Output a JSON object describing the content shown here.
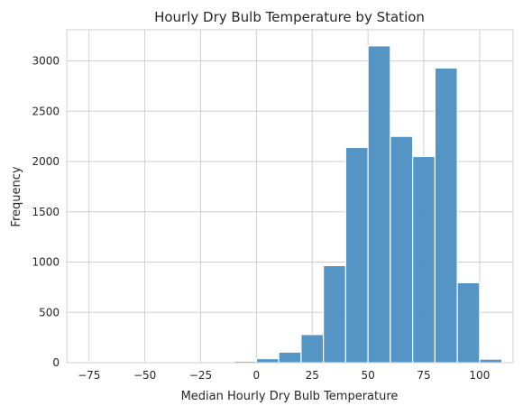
{
  "chart_data": {
    "type": "histogram",
    "title": "Hourly Dry Bulb Temperature by Station",
    "xlabel": "Median Hourly Dry Bulb Temperature",
    "ylabel": "Frequency",
    "xlim": [
      -85,
      115
    ],
    "ylim": [
      0,
      3310
    ],
    "grid": true,
    "xticks": [
      -75,
      -50,
      -25,
      0,
      25,
      50,
      75,
      100
    ],
    "yticks": [
      0,
      500,
      1000,
      1500,
      2000,
      2500,
      3000
    ],
    "bins": [
      {
        "x0": -80,
        "x1": -70,
        "count": 2
      },
      {
        "x0": -70,
        "x1": -60,
        "count": 1
      },
      {
        "x0": -60,
        "x1": -50,
        "count": 1
      },
      {
        "x0": -50,
        "x1": -40,
        "count": 1
      },
      {
        "x0": -40,
        "x1": -30,
        "count": 1
      },
      {
        "x0": -30,
        "x1": -20,
        "count": 2
      },
      {
        "x0": -20,
        "x1": -10,
        "count": 8
      },
      {
        "x0": -10,
        "x1": 0,
        "count": 15
      },
      {
        "x0": 0,
        "x1": 10,
        "count": 40
      },
      {
        "x0": 10,
        "x1": 20,
        "count": 105
      },
      {
        "x0": 20,
        "x1": 30,
        "count": 280
      },
      {
        "x0": 30,
        "x1": 40,
        "count": 965
      },
      {
        "x0": 40,
        "x1": 50,
        "count": 2140
      },
      {
        "x0": 50,
        "x1": 60,
        "count": 3150
      },
      {
        "x0": 60,
        "x1": 70,
        "count": 2250
      },
      {
        "x0": 70,
        "x1": 80,
        "count": 2050
      },
      {
        "x0": 80,
        "x1": 90,
        "count": 2930
      },
      {
        "x0": 90,
        "x1": 100,
        "count": 795
      },
      {
        "x0": 100,
        "x1": 110,
        "count": 35
      }
    ],
    "colors": {
      "bar": "#4b8fc2",
      "bar_edge": "#ffffff",
      "grid": "#cfcfcf",
      "spine": "#cfcfcf"
    }
  }
}
